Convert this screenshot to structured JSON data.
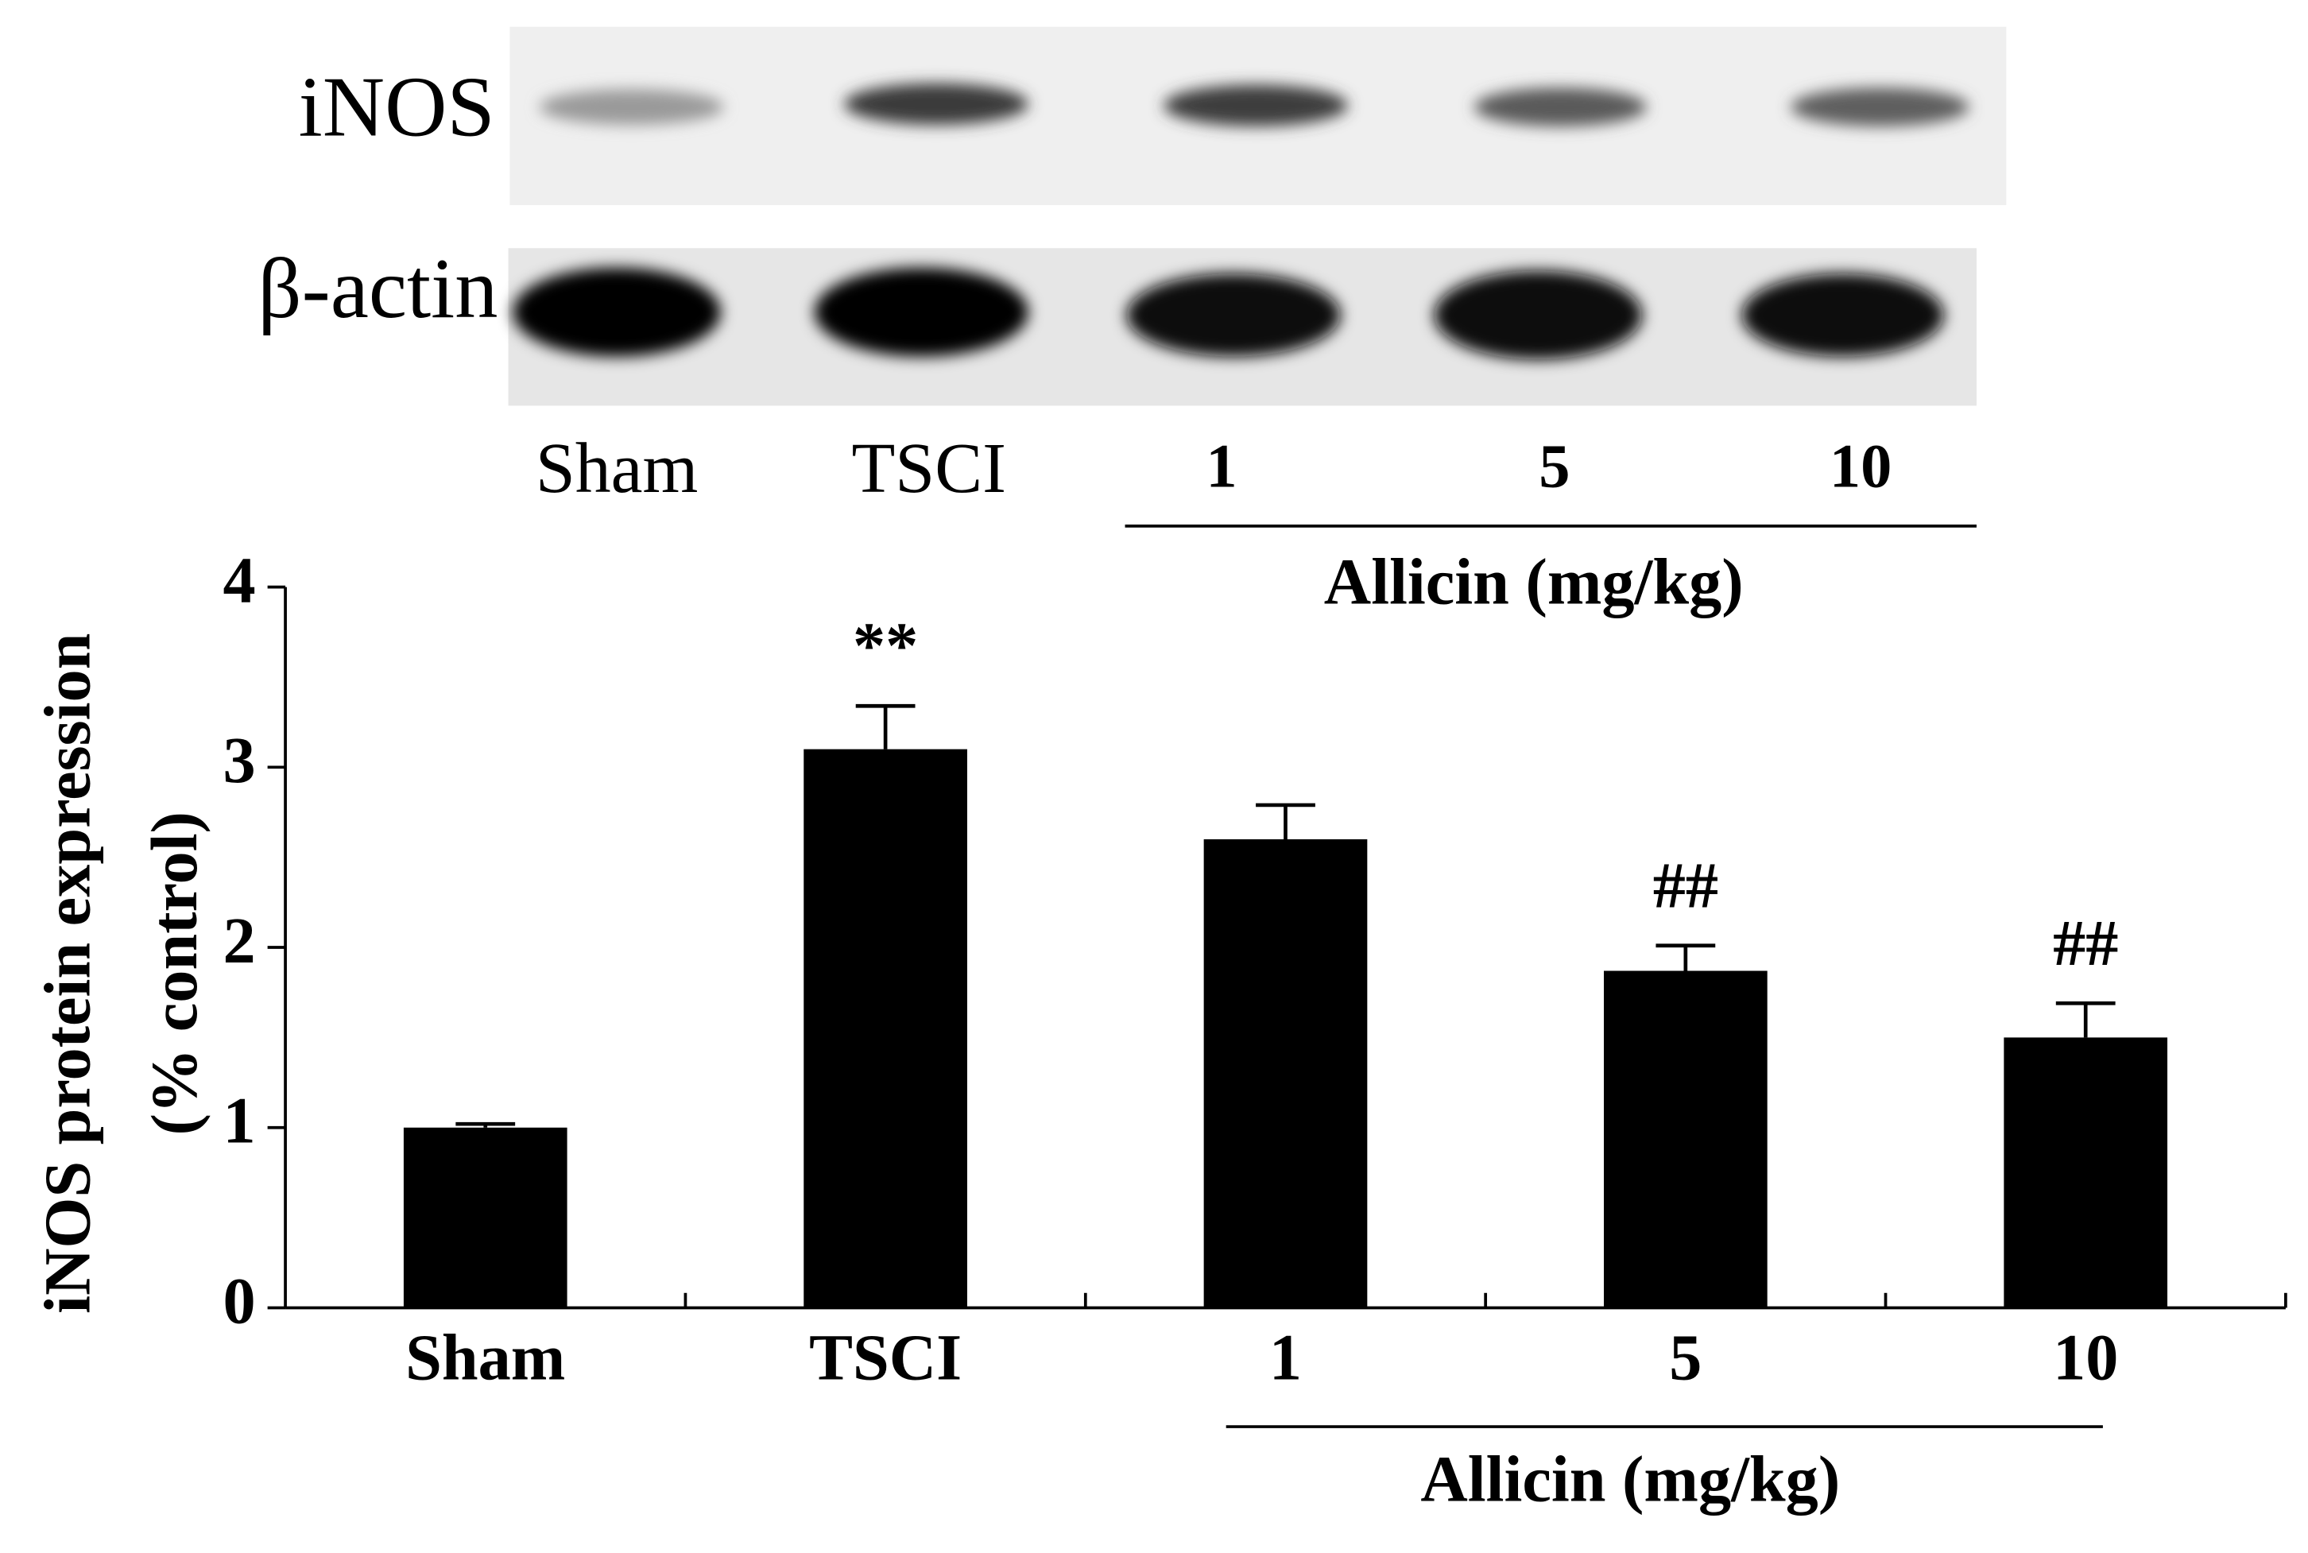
{
  "blot": {
    "rows": [
      "iNOS",
      "β-actin"
    ],
    "lanes": [
      "Sham",
      "TSCI",
      "1",
      "5",
      "10"
    ],
    "group_label": "Allicin (mg/kg)"
  },
  "chart_data": {
    "type": "bar",
    "ylabel": [
      "iNOS protein expression",
      "(% control)"
    ],
    "categories": [
      "Sham",
      "TSCI",
      "1",
      "5",
      "10"
    ],
    "values": [
      1.0,
      3.1,
      2.6,
      1.87,
      1.5
    ],
    "errors": [
      0.02,
      0.24,
      0.19,
      0.14,
      0.19
    ],
    "value_annotations": [
      null,
      "**",
      null,
      "##",
      "##"
    ],
    "group_label": "Allicin (mg/kg)",
    "color": "#000000",
    "ylim": [
      0,
      4
    ],
    "yticks": [
      0,
      1,
      2,
      3,
      4
    ]
  }
}
